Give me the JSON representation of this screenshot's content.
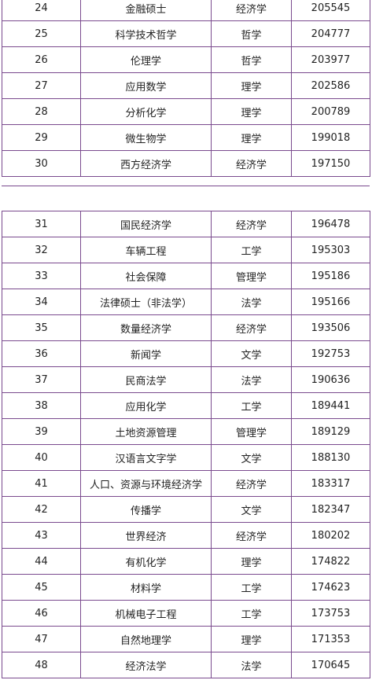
{
  "colors": {
    "border": "#7a4a8e",
    "text": "#222222",
    "background": "#ffffff"
  },
  "table_top": {
    "rows": [
      {
        "rank": "24",
        "major": "金融硕士",
        "category": "经济学",
        "count": "205545"
      },
      {
        "rank": "25",
        "major": "科学技术哲学",
        "category": "哲学",
        "count": "204777"
      },
      {
        "rank": "26",
        "major": "伦理学",
        "category": "哲学",
        "count": "203977"
      },
      {
        "rank": "27",
        "major": "应用数学",
        "category": "理学",
        "count": "202586"
      },
      {
        "rank": "28",
        "major": "分析化学",
        "category": "理学",
        "count": "200789"
      },
      {
        "rank": "29",
        "major": "微生物学",
        "category": "理学",
        "count": "199018"
      },
      {
        "rank": "30",
        "major": "西方经济学",
        "category": "经济学",
        "count": "197150"
      }
    ]
  },
  "table_bottom": {
    "rows": [
      {
        "rank": "31",
        "major": "国民经济学",
        "category": "经济学",
        "count": "196478"
      },
      {
        "rank": "32",
        "major": "车辆工程",
        "category": "工学",
        "count": "195303"
      },
      {
        "rank": "33",
        "major": "社会保障",
        "category": "管理学",
        "count": "195186"
      },
      {
        "rank": "34",
        "major": "法律硕士（非法学）",
        "category": "法学",
        "count": "195166"
      },
      {
        "rank": "35",
        "major": "数量经济学",
        "category": "经济学",
        "count": "193506"
      },
      {
        "rank": "36",
        "major": "新闻学",
        "category": "文学",
        "count": "192753"
      },
      {
        "rank": "37",
        "major": "民商法学",
        "category": "法学",
        "count": "190636"
      },
      {
        "rank": "38",
        "major": "应用化学",
        "category": "工学",
        "count": "189441"
      },
      {
        "rank": "39",
        "major": "土地资源管理",
        "category": "管理学",
        "count": "189129"
      },
      {
        "rank": "40",
        "major": "汉语言文字学",
        "category": "文学",
        "count": "188130"
      },
      {
        "rank": "41",
        "major": "人口、资源与环境经济学",
        "category": "经济学",
        "count": "183317"
      },
      {
        "rank": "42",
        "major": "传播学",
        "category": "文学",
        "count": "182347"
      },
      {
        "rank": "43",
        "major": "世界经济",
        "category": "经济学",
        "count": "180202"
      },
      {
        "rank": "44",
        "major": "有机化学",
        "category": "理学",
        "count": "174822"
      },
      {
        "rank": "45",
        "major": "材料学",
        "category": "工学",
        "count": "174623"
      },
      {
        "rank": "46",
        "major": "机械电子工程",
        "category": "工学",
        "count": "173753"
      },
      {
        "rank": "47",
        "major": "自然地理学",
        "category": "理学",
        "count": "171353"
      },
      {
        "rank": "48",
        "major": "经济法学",
        "category": "法学",
        "count": "170645"
      }
    ]
  }
}
